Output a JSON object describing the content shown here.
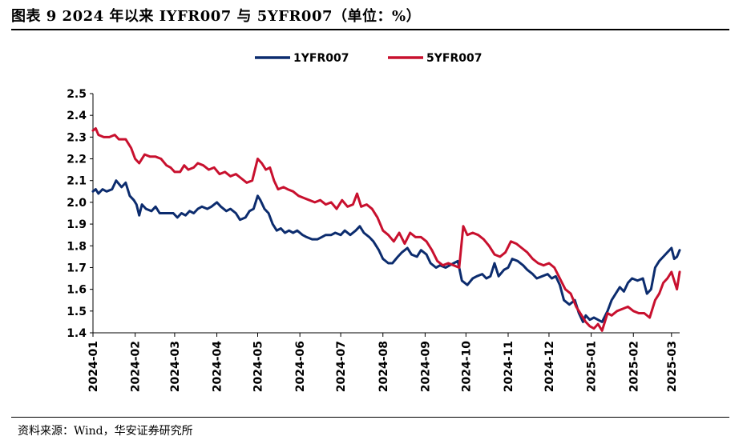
{
  "header": {
    "title": "图表 9 2024 年以来 IYFR007 与 5YFR007（单位：%）"
  },
  "footer": {
    "source": "资料来源：Wind，华安证券研究所"
  },
  "chart_data": {
    "type": "line",
    "ylim": [
      1.4,
      2.5
    ],
    "yticks": [
      "1.4",
      "1.5",
      "1.6",
      "1.7",
      "1.8",
      "1.9",
      "2.0",
      "2.1",
      "2.2",
      "2.3",
      "2.4",
      "2.5"
    ],
    "xlim": [
      "2024-01-01",
      "2025-03-07"
    ],
    "xticks": [
      "2024-01",
      "2024-02",
      "2024-03",
      "2024-04",
      "2024-05",
      "2024-06",
      "2024-07",
      "2024-08",
      "2024-09",
      "2024-10",
      "2024-11",
      "2024-12",
      "2025-01",
      "2025-02",
      "2025-03"
    ],
    "legend_position": "top-center",
    "grid": false,
    "series": [
      {
        "name": "1YFR007",
        "color": "#0c2c6e",
        "points": [
          [
            "2024-01-01",
            2.05
          ],
          [
            "2024-01-03",
            2.06
          ],
          [
            "2024-01-05",
            2.04
          ],
          [
            "2024-01-08",
            2.06
          ],
          [
            "2024-01-11",
            2.05
          ],
          [
            "2024-01-15",
            2.06
          ],
          [
            "2024-01-18",
            2.1
          ],
          [
            "2024-01-22",
            2.07
          ],
          [
            "2024-01-25",
            2.09
          ],
          [
            "2024-01-28",
            2.03
          ],
          [
            "2024-01-31",
            2.01
          ],
          [
            "2024-02-02",
            1.99
          ],
          [
            "2024-02-04",
            1.94
          ],
          [
            "2024-02-06",
            1.99
          ],
          [
            "2024-02-09",
            1.97
          ],
          [
            "2024-02-13",
            1.96
          ],
          [
            "2024-02-16",
            1.98
          ],
          [
            "2024-02-19",
            1.95
          ],
          [
            "2024-02-22",
            1.95
          ],
          [
            "2024-02-26",
            1.95
          ],
          [
            "2024-02-29",
            1.95
          ],
          [
            "2024-03-03",
            1.93
          ],
          [
            "2024-03-06",
            1.95
          ],
          [
            "2024-03-09",
            1.94
          ],
          [
            "2024-03-12",
            1.96
          ],
          [
            "2024-03-15",
            1.95
          ],
          [
            "2024-03-18",
            1.97
          ],
          [
            "2024-03-21",
            1.98
          ],
          [
            "2024-03-25",
            1.97
          ],
          [
            "2024-03-28",
            1.98
          ],
          [
            "2024-04-01",
            2.0
          ],
          [
            "2024-04-04",
            1.98
          ],
          [
            "2024-04-08",
            1.96
          ],
          [
            "2024-04-11",
            1.97
          ],
          [
            "2024-04-15",
            1.95
          ],
          [
            "2024-04-18",
            1.92
          ],
          [
            "2024-04-22",
            1.93
          ],
          [
            "2024-04-25",
            1.96
          ],
          [
            "2024-04-28",
            1.97
          ],
          [
            "2024-05-01",
            2.03
          ],
          [
            "2024-05-03",
            2.01
          ],
          [
            "2024-05-06",
            1.97
          ],
          [
            "2024-05-09",
            1.95
          ],
          [
            "2024-05-12",
            1.9
          ],
          [
            "2024-05-15",
            1.87
          ],
          [
            "2024-05-18",
            1.88
          ],
          [
            "2024-05-21",
            1.86
          ],
          [
            "2024-05-24",
            1.87
          ],
          [
            "2024-05-27",
            1.86
          ],
          [
            "2024-05-30",
            1.87
          ],
          [
            "2024-06-03",
            1.85
          ],
          [
            "2024-06-06",
            1.84
          ],
          [
            "2024-06-10",
            1.83
          ],
          [
            "2024-06-14",
            1.83
          ],
          [
            "2024-06-17",
            1.84
          ],
          [
            "2024-06-20",
            1.85
          ],
          [
            "2024-06-24",
            1.85
          ],
          [
            "2024-06-27",
            1.86
          ],
          [
            "2024-07-01",
            1.85
          ],
          [
            "2024-07-04",
            1.87
          ],
          [
            "2024-07-08",
            1.85
          ],
          [
            "2024-07-12",
            1.87
          ],
          [
            "2024-07-15",
            1.89
          ],
          [
            "2024-07-18",
            1.86
          ],
          [
            "2024-07-22",
            1.84
          ],
          [
            "2024-07-25",
            1.82
          ],
          [
            "2024-07-29",
            1.78
          ],
          [
            "2024-08-01",
            1.74
          ],
          [
            "2024-08-05",
            1.72
          ],
          [
            "2024-08-08",
            1.72
          ],
          [
            "2024-08-12",
            1.75
          ],
          [
            "2024-08-15",
            1.77
          ],
          [
            "2024-08-19",
            1.79
          ],
          [
            "2024-08-22",
            1.76
          ],
          [
            "2024-08-26",
            1.75
          ],
          [
            "2024-08-29",
            1.78
          ],
          [
            "2024-09-02",
            1.76
          ],
          [
            "2024-09-05",
            1.72
          ],
          [
            "2024-09-09",
            1.7
          ],
          [
            "2024-09-12",
            1.71
          ],
          [
            "2024-09-16",
            1.7
          ],
          [
            "2024-09-19",
            1.71
          ],
          [
            "2024-09-22",
            1.72
          ],
          [
            "2024-09-25",
            1.73
          ],
          [
            "2024-09-28",
            1.64
          ],
          [
            "2024-10-02",
            1.62
          ],
          [
            "2024-10-06",
            1.65
          ],
          [
            "2024-10-09",
            1.66
          ],
          [
            "2024-10-13",
            1.67
          ],
          [
            "2024-10-16",
            1.65
          ],
          [
            "2024-10-19",
            1.66
          ],
          [
            "2024-10-22",
            1.72
          ],
          [
            "2024-10-25",
            1.66
          ],
          [
            "2024-10-29",
            1.69
          ],
          [
            "2024-11-01",
            1.7
          ],
          [
            "2024-11-04",
            1.74
          ],
          [
            "2024-11-08",
            1.73
          ],
          [
            "2024-11-12",
            1.71
          ],
          [
            "2024-11-15",
            1.69
          ],
          [
            "2024-11-19",
            1.67
          ],
          [
            "2024-11-22",
            1.65
          ],
          [
            "2024-11-26",
            1.66
          ],
          [
            "2024-11-30",
            1.67
          ],
          [
            "2024-12-03",
            1.65
          ],
          [
            "2024-12-06",
            1.66
          ],
          [
            "2024-12-09",
            1.62
          ],
          [
            "2024-12-12",
            1.55
          ],
          [
            "2024-12-16",
            1.53
          ],
          [
            "2024-12-20",
            1.55
          ],
          [
            "2024-12-23",
            1.49
          ],
          [
            "2024-12-26",
            1.45
          ],
          [
            "2024-12-28",
            1.48
          ],
          [
            "2024-12-31",
            1.46
          ],
          [
            "2025-01-03",
            1.47
          ],
          [
            "2025-01-06",
            1.46
          ],
          [
            "2025-01-09",
            1.45
          ],
          [
            "2025-01-13",
            1.5
          ],
          [
            "2025-01-16",
            1.55
          ],
          [
            "2025-01-19",
            1.58
          ],
          [
            "2025-01-22",
            1.61
          ],
          [
            "2025-01-25",
            1.59
          ],
          [
            "2025-01-28",
            1.63
          ],
          [
            "2025-01-31",
            1.65
          ],
          [
            "2025-02-04",
            1.64
          ],
          [
            "2025-02-08",
            1.65
          ],
          [
            "2025-02-11",
            1.58
          ],
          [
            "2025-02-14",
            1.6
          ],
          [
            "2025-02-17",
            1.7
          ],
          [
            "2025-02-20",
            1.73
          ],
          [
            "2025-02-23",
            1.75
          ],
          [
            "2025-02-26",
            1.77
          ],
          [
            "2025-03-01",
            1.79
          ],
          [
            "2025-03-03",
            1.74
          ],
          [
            "2025-03-05",
            1.75
          ],
          [
            "2025-03-07",
            1.78
          ]
        ]
      },
      {
        "name": "5YFR007",
        "color": "#c8102e",
        "points": [
          [
            "2024-01-01",
            2.33
          ],
          [
            "2024-01-03",
            2.34
          ],
          [
            "2024-01-05",
            2.31
          ],
          [
            "2024-01-09",
            2.3
          ],
          [
            "2024-01-13",
            2.3
          ],
          [
            "2024-01-17",
            2.31
          ],
          [
            "2024-01-20",
            2.29
          ],
          [
            "2024-01-25",
            2.29
          ],
          [
            "2024-01-29",
            2.25
          ],
          [
            "2024-02-01",
            2.2
          ],
          [
            "2024-02-04",
            2.18
          ],
          [
            "2024-02-08",
            2.22
          ],
          [
            "2024-02-12",
            2.21
          ],
          [
            "2024-02-16",
            2.21
          ],
          [
            "2024-02-20",
            2.2
          ],
          [
            "2024-02-24",
            2.17
          ],
          [
            "2024-02-27",
            2.16
          ],
          [
            "2024-03-01",
            2.14
          ],
          [
            "2024-03-05",
            2.14
          ],
          [
            "2024-03-08",
            2.17
          ],
          [
            "2024-03-11",
            2.15
          ],
          [
            "2024-03-15",
            2.16
          ],
          [
            "2024-03-18",
            2.18
          ],
          [
            "2024-03-22",
            2.17
          ],
          [
            "2024-03-26",
            2.15
          ],
          [
            "2024-03-30",
            2.16
          ],
          [
            "2024-04-03",
            2.13
          ],
          [
            "2024-04-07",
            2.14
          ],
          [
            "2024-04-11",
            2.12
          ],
          [
            "2024-04-15",
            2.13
          ],
          [
            "2024-04-19",
            2.11
          ],
          [
            "2024-04-23",
            2.09
          ],
          [
            "2024-04-27",
            2.1
          ],
          [
            "2024-05-01",
            2.2
          ],
          [
            "2024-05-04",
            2.18
          ],
          [
            "2024-05-07",
            2.15
          ],
          [
            "2024-05-10",
            2.16
          ],
          [
            "2024-05-13",
            2.1
          ],
          [
            "2024-05-16",
            2.06
          ],
          [
            "2024-05-20",
            2.07
          ],
          [
            "2024-05-23",
            2.06
          ],
          [
            "2024-05-27",
            2.05
          ],
          [
            "2024-05-31",
            2.03
          ],
          [
            "2024-06-04",
            2.02
          ],
          [
            "2024-06-08",
            2.01
          ],
          [
            "2024-06-12",
            2.0
          ],
          [
            "2024-06-16",
            2.01
          ],
          [
            "2024-06-20",
            1.99
          ],
          [
            "2024-06-24",
            2.0
          ],
          [
            "2024-06-28",
            1.97
          ],
          [
            "2024-07-02",
            2.01
          ],
          [
            "2024-07-06",
            1.98
          ],
          [
            "2024-07-10",
            1.99
          ],
          [
            "2024-07-13",
            2.04
          ],
          [
            "2024-07-16",
            1.98
          ],
          [
            "2024-07-20",
            1.99
          ],
          [
            "2024-07-24",
            1.97
          ],
          [
            "2024-07-28",
            1.93
          ],
          [
            "2024-08-01",
            1.87
          ],
          [
            "2024-08-05",
            1.85
          ],
          [
            "2024-08-09",
            1.82
          ],
          [
            "2024-08-13",
            1.86
          ],
          [
            "2024-08-17",
            1.81
          ],
          [
            "2024-08-21",
            1.86
          ],
          [
            "2024-08-25",
            1.84
          ],
          [
            "2024-08-29",
            1.84
          ],
          [
            "2024-09-02",
            1.82
          ],
          [
            "2024-09-06",
            1.78
          ],
          [
            "2024-09-10",
            1.73
          ],
          [
            "2024-09-14",
            1.71
          ],
          [
            "2024-09-18",
            1.72
          ],
          [
            "2024-09-22",
            1.71
          ],
          [
            "2024-09-26",
            1.7
          ],
          [
            "2024-09-29",
            1.89
          ],
          [
            "2024-10-02",
            1.85
          ],
          [
            "2024-10-06",
            1.86
          ],
          [
            "2024-10-10",
            1.85
          ],
          [
            "2024-10-14",
            1.83
          ],
          [
            "2024-10-18",
            1.8
          ],
          [
            "2024-10-22",
            1.76
          ],
          [
            "2024-10-26",
            1.75
          ],
          [
            "2024-10-30",
            1.77
          ],
          [
            "2024-11-03",
            1.82
          ],
          [
            "2024-11-07",
            1.81
          ],
          [
            "2024-11-11",
            1.79
          ],
          [
            "2024-11-15",
            1.77
          ],
          [
            "2024-11-19",
            1.74
          ],
          [
            "2024-11-23",
            1.72
          ],
          [
            "2024-11-27",
            1.71
          ],
          [
            "2024-12-01",
            1.72
          ],
          [
            "2024-12-05",
            1.7
          ],
          [
            "2024-12-09",
            1.65
          ],
          [
            "2024-12-13",
            1.6
          ],
          [
            "2024-12-17",
            1.58
          ],
          [
            "2024-12-21",
            1.52
          ],
          [
            "2024-12-25",
            1.48
          ],
          [
            "2024-12-28",
            1.45
          ],
          [
            "2024-12-31",
            1.43
          ],
          [
            "2025-01-03",
            1.42
          ],
          [
            "2025-01-06",
            1.44
          ],
          [
            "2025-01-09",
            1.41
          ],
          [
            "2025-01-13",
            1.49
          ],
          [
            "2025-01-16",
            1.48
          ],
          [
            "2025-01-20",
            1.5
          ],
          [
            "2025-01-24",
            1.51
          ],
          [
            "2025-01-28",
            1.52
          ],
          [
            "2025-02-01",
            1.5
          ],
          [
            "2025-02-05",
            1.49
          ],
          [
            "2025-02-09",
            1.49
          ],
          [
            "2025-02-13",
            1.47
          ],
          [
            "2025-02-17",
            1.55
          ],
          [
            "2025-02-20",
            1.58
          ],
          [
            "2025-02-23",
            1.63
          ],
          [
            "2025-02-26",
            1.65
          ],
          [
            "2025-03-01",
            1.68
          ],
          [
            "2025-03-03",
            1.64
          ],
          [
            "2025-03-05",
            1.6
          ],
          [
            "2025-03-07",
            1.68
          ]
        ]
      }
    ]
  }
}
